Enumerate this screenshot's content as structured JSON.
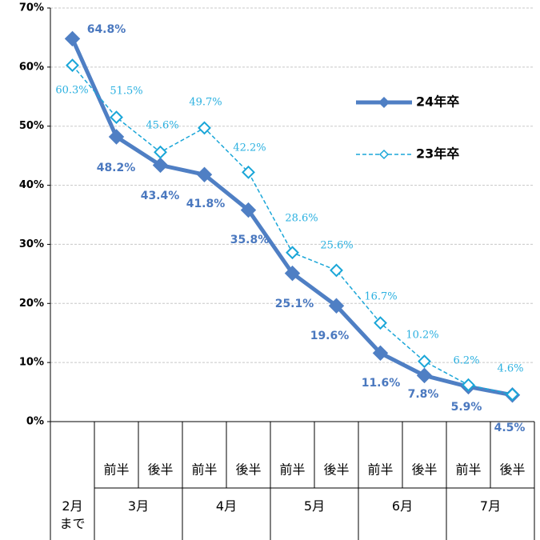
{
  "chart_data": {
    "type": "line",
    "categories": [
      null,
      "前半",
      "後半",
      "前半",
      "後半",
      "前半",
      "後半",
      "前半",
      "後半",
      "前半",
      "後半"
    ],
    "x_groups": [
      "2月まで",
      "3月",
      "4月",
      "5月",
      "6月",
      "7月"
    ],
    "series": [
      {
        "name": "24年卒",
        "color": "#4f7fc4",
        "line_style": "solid",
        "values": [
          64.8,
          48.2,
          43.4,
          41.8,
          35.8,
          25.1,
          19.6,
          11.6,
          7.8,
          5.9,
          4.5
        ],
        "value_labels": [
          "64.8%",
          "48.2%",
          "43.4%",
          "41.8%",
          "35.8%",
          "25.1%",
          "19.6%",
          "11.6%",
          "7.8%",
          "5.9%",
          "4.5%"
        ]
      },
      {
        "name": "23年卒",
        "color": "#1aa6d8",
        "line_style": "dashed",
        "values": [
          60.3,
          51.5,
          45.6,
          49.7,
          42.2,
          28.6,
          25.6,
          16.7,
          10.2,
          6.2,
          4.6
        ],
        "value_labels": [
          "60.3%",
          "51.5%",
          "45.6%",
          "49.7%",
          "42.2%",
          "28.6%",
          "25.6%",
          "16.7%",
          "10.2%",
          "6.2%",
          "4.6%"
        ]
      }
    ],
    "ylim": [
      0,
      70
    ],
    "yticks": [
      {
        "value": 0,
        "label": "0%"
      },
      {
        "value": 10,
        "label": "10%"
      },
      {
        "value": 20,
        "label": "20%"
      },
      {
        "value": 30,
        "label": "30%"
      },
      {
        "value": 40,
        "label": "40%"
      },
      {
        "value": 50,
        "label": "50%"
      },
      {
        "value": 60,
        "label": "60%"
      },
      {
        "value": 70,
        "label": "70%"
      }
    ],
    "grid": true
  }
}
